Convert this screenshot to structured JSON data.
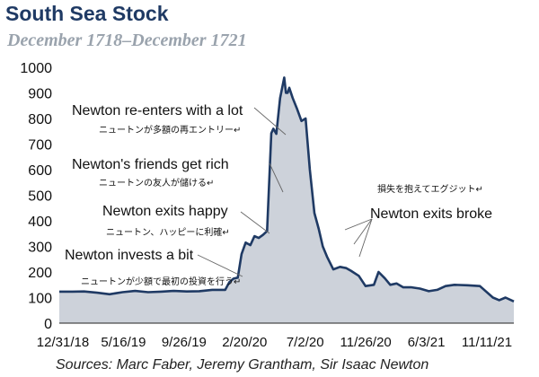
{
  "chart_data": {
    "type": "area",
    "title": "South Sea Stock",
    "subtitle": "December 1718–December 1721",
    "source": "Sources: Marc Faber, Jeremy Grantham, Sir Isaac Newton",
    "x_ticks": [
      "12/31/18",
      "5/16/19",
      "9/26/19",
      "2/20/20",
      "7/2/20",
      "11/26/20",
      "6/3/21",
      "11/11/21"
    ],
    "x_range": [
      "1718-12-31",
      "1721-12-20"
    ],
    "ylim": [
      0,
      1000
    ],
    "y_ticks": [
      0,
      100,
      200,
      300,
      400,
      500,
      600,
      700,
      800,
      900,
      1000
    ],
    "grid": false,
    "colors": {
      "line": "#1f3a64",
      "fill": "#cdd2da",
      "title": "#1f3a64",
      "subtitle": "#9aa3ad"
    },
    "series": [
      {
        "x": [
          "1718-12-31",
          "1719-01-31",
          "1719-02-28",
          "1719-03-31",
          "1719-04-30",
          "1719-05-31",
          "1719-06-30",
          "1719-07-31",
          "1719-08-31",
          "1719-09-30",
          "1719-10-31",
          "1719-11-30",
          "1719-12-31",
          "1720-01-15",
          "1720-01-31",
          "1720-02-10",
          "1720-02-20",
          "1720-03-01",
          "1720-03-10",
          "1720-03-20",
          "1720-03-31",
          "1720-04-10",
          "1720-04-20",
          "1720-04-30",
          "1720-05-10",
          "1720-05-20",
          "1720-05-25",
          "1720-06-01",
          "1720-06-10",
          "1720-06-20",
          "1720-06-24",
          "1720-06-28",
          "1720-07-02",
          "1720-07-10",
          "1720-07-20",
          "1720-07-31",
          "1720-08-10",
          "1720-08-20",
          "1720-08-31",
          "1720-09-10",
          "1720-09-20",
          "1720-09-30",
          "1720-10-15",
          "1720-10-31",
          "1720-11-15",
          "1720-11-26",
          "1720-12-15",
          "1720-12-31",
          "1721-01-20",
          "1721-01-31",
          "1721-02-15",
          "1721-02-28",
          "1721-03-15",
          "1721-03-31",
          "1721-04-20",
          "1721-05-10",
          "1721-05-31",
          "1721-06-20",
          "1721-07-10",
          "1721-07-31",
          "1721-08-31",
          "1721-09-30",
          "1721-10-31",
          "1721-11-15",
          "1721-11-30",
          "1721-12-20"
        ],
        "values": [
          123,
          123,
          124,
          119,
          113,
          121,
          126,
          121,
          123,
          126,
          124,
          125,
          130,
          130,
          130,
          160,
          174,
          178,
          270,
          315,
          305,
          340,
          333,
          345,
          360,
          742,
          760,
          740,
          880,
          960,
          900,
          900,
          920,
          880,
          840,
          790,
          800,
          600,
          430,
          370,
          300,
          260,
          210,
          220,
          215,
          205,
          185,
          145,
          150,
          200,
          175,
          150,
          155,
          140,
          140,
          135,
          125,
          130,
          145,
          150,
          148,
          145,
          100,
          90,
          100,
          85
        ]
      }
    ],
    "annotations": [
      {
        "en": "Newton re-enters with a lot",
        "jp": "ニュートンが多額の再エントリー↵",
        "target_x": "1720-05-25",
        "target_y": 742
      },
      {
        "en": "Newton's friends get rich",
        "jp": "ニュートンの友人が儲ける↵",
        "target_x": "1720-05-20",
        "target_y": 560
      },
      {
        "en": "Newton exits happy",
        "jp": "ニュートン、ハッピーに利確↵",
        "target_x": "1720-04-20",
        "target_y": 340
      },
      {
        "en": "Newton invests a bit",
        "jp": "ニュートンが少額で最初の投資を行う↵",
        "target_x": "1720-02-20",
        "target_y": 178
      },
      {
        "en": "Newton exits broke",
        "jp": "損失を抱えてエグジット↵"
      }
    ]
  }
}
